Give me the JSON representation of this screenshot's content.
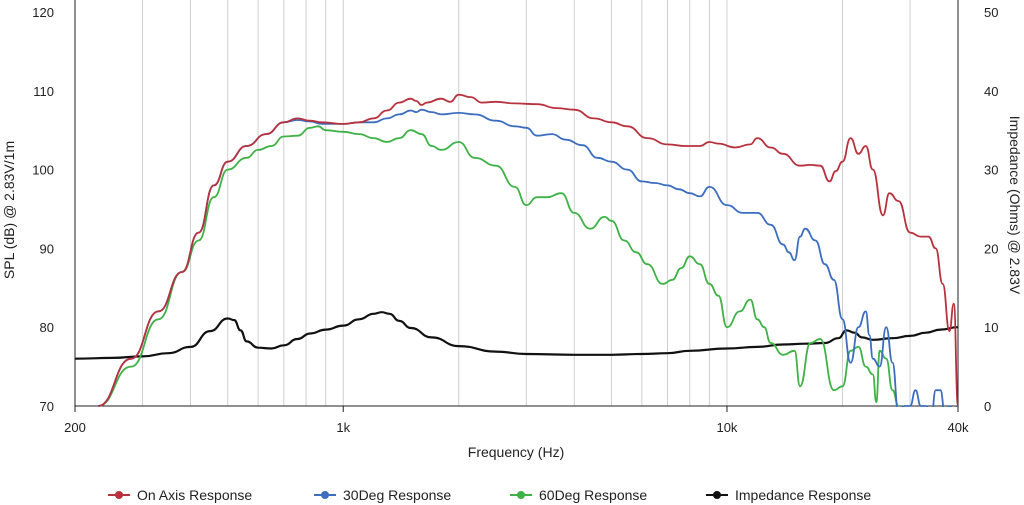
{
  "chart_data": {
    "type": "line",
    "title": "",
    "xlabel": "Frequency (Hz)",
    "ylabel": "SPL (dB) @ 2.83V/1m",
    "y2label": "Impedance (Ohms) @ 2.83V",
    "x_scale": "log",
    "xlim": [
      200,
      40000
    ],
    "ylim": [
      70,
      120
    ],
    "y2lim": [
      0,
      50
    ],
    "grid": "vertical",
    "legend_position": "bottom",
    "x_ticks": [
      {
        "value": 200,
        "label": "200"
      },
      {
        "value": 1000,
        "label": "1k"
      },
      {
        "value": 10000,
        "label": "10k"
      },
      {
        "value": 40000,
        "label": "40k"
      }
    ],
    "y_ticks": [
      {
        "value": 70,
        "label": "70"
      },
      {
        "value": 80,
        "label": "80"
      },
      {
        "value": 90,
        "label": "90"
      },
      {
        "value": 100,
        "label": "100"
      },
      {
        "value": 110,
        "label": "110"
      },
      {
        "value": 120,
        "label": "120"
      }
    ],
    "y2_ticks": [
      {
        "value": 0,
        "label": "0"
      },
      {
        "value": 10,
        "label": "10"
      },
      {
        "value": 20,
        "label": "20"
      },
      {
        "value": 30,
        "label": "30"
      },
      {
        "value": 40,
        "label": "40"
      },
      {
        "value": 50,
        "label": "50"
      }
    ],
    "series": [
      {
        "name": "On Axis Response",
        "color": "#b8323e",
        "axis": "left",
        "x": [
          230,
          280,
          330,
          380,
          420,
          460,
          500,
          560,
          630,
          700,
          760,
          820,
          880,
          1000,
          1100,
          1200,
          1300,
          1400,
          1500,
          1550,
          1600,
          1650,
          1800,
          1900,
          2000,
          2150,
          2300,
          2500,
          2800,
          3200,
          3600,
          4000,
          4500,
          5000,
          5500,
          6200,
          7000,
          7800,
          8500,
          9000,
          9500,
          10500,
          11500,
          12000,
          13000,
          14000,
          15500,
          16500,
          17500,
          18500,
          19200,
          20000,
          21000,
          22000,
          23000,
          24000,
          25500,
          26500,
          28000,
          30000,
          32000,
          33500,
          35000,
          36500,
          38000,
          39000,
          40000
        ],
        "y": [
          70,
          76,
          82,
          87,
          92,
          98,
          101,
          103,
          104.5,
          106,
          106.5,
          106.2,
          106,
          105.8,
          106,
          106.5,
          107.5,
          108.5,
          109,
          108.7,
          108.2,
          108.5,
          109,
          108.6,
          109.5,
          109.2,
          108.5,
          108.6,
          108.4,
          108.3,
          107.8,
          107.6,
          106.5,
          106,
          105.5,
          104,
          103.2,
          103,
          103,
          103.5,
          103.3,
          102.8,
          103.2,
          104,
          102.8,
          102,
          100.5,
          100.6,
          100.5,
          98.5,
          99.8,
          101,
          104,
          102,
          103,
          100,
          94.2,
          97,
          96,
          92,
          91.5,
          91.5,
          90,
          85.5,
          79.5,
          83,
          70
        ]
      },
      {
        "name": "30Deg Response",
        "color": "#3c6dbf",
        "axis": "left",
        "x": [
          230,
          280,
          330,
          380,
          420,
          460,
          500,
          560,
          630,
          700,
          760,
          820,
          880,
          1000,
          1100,
          1200,
          1300,
          1400,
          1500,
          1550,
          1600,
          1700,
          1800,
          2000,
          2200,
          2500,
          2800,
          3000,
          3200,
          3500,
          3800,
          4200,
          4600,
          5000,
          5500,
          6000,
          6500,
          7000,
          7500,
          8000,
          8500,
          9000,
          10000,
          11000,
          12000,
          13000,
          14000,
          14500,
          15000,
          15500,
          16000,
          17000,
          18000,
          19000,
          20000,
          21000,
          22000,
          23000,
          23500,
          24000,
          25000,
          26000,
          27000,
          28000,
          29000,
          30000,
          31000,
          32000,
          33000,
          34000,
          35000,
          36000,
          37000,
          38000,
          39000,
          40000
        ],
        "y": [
          70,
          76,
          82,
          87,
          92,
          98,
          101,
          103,
          104.5,
          106,
          106.3,
          106.1,
          105.8,
          105.8,
          106,
          106,
          106.5,
          107,
          107.5,
          107.3,
          107.6,
          107.3,
          107,
          107.2,
          107,
          106.2,
          105.5,
          105.3,
          104.3,
          104.5,
          103.8,
          103.1,
          101.5,
          101,
          100,
          98.5,
          98.3,
          98,
          97.5,
          97,
          96.6,
          97.8,
          95.5,
          94.5,
          94.5,
          93,
          90.5,
          89.5,
          88.5,
          91.5,
          92.5,
          91,
          88,
          86,
          81,
          75.5,
          80,
          82,
          79,
          76,
          75,
          80,
          75.5,
          69,
          70,
          70,
          72,
          70,
          70,
          68,
          72,
          72,
          69,
          70,
          69,
          70
        ]
      },
      {
        "name": "60Deg Response",
        "color": "#3fb247",
        "axis": "left",
        "x": [
          230,
          280,
          330,
          380,
          420,
          460,
          500,
          560,
          600,
          650,
          700,
          760,
          820,
          860,
          900,
          1000,
          1100,
          1200,
          1300,
          1400,
          1500,
          1600,
          1700,
          1800,
          2000,
          2200,
          2500,
          2800,
          3000,
          3200,
          3400,
          3700,
          4000,
          4400,
          4800,
          5000,
          5400,
          5800,
          6200,
          6800,
          7200,
          7600,
          8000,
          8500,
          9000,
          9500,
          10000,
          10800,
          11500,
          12000,
          12500,
          13000,
          14000,
          15000,
          15500,
          16500,
          17500,
          19000,
          20000,
          21000,
          22000,
          23000,
          24000,
          24500,
          25000,
          26000,
          27000,
          28000
        ],
        "y": [
          70,
          75,
          81,
          87,
          91,
          96.5,
          100,
          101.5,
          102.5,
          103,
          104.2,
          104.3,
          105.3,
          105.5,
          105,
          104.8,
          104.5,
          104,
          103.5,
          104,
          105,
          104.5,
          103,
          102.5,
          103.5,
          101.5,
          100.5,
          97.8,
          95.5,
          96.5,
          96.5,
          97,
          94.5,
          92.5,
          94,
          93.5,
          91,
          89.5,
          88,
          85.5,
          86,
          87.5,
          89,
          88,
          85.5,
          84,
          80,
          82,
          83.5,
          81,
          80,
          78,
          76.5,
          77,
          72.5,
          78,
          78.5,
          72,
          72.5,
          77,
          77.5,
          75,
          74,
          70.5,
          77,
          76,
          72,
          70
        ]
      },
      {
        "name": "Impedance Response",
        "color": "#111111",
        "axis": "right",
        "x": [
          200,
          250,
          300,
          350,
          400,
          450,
          500,
          520,
          540,
          560,
          600,
          650,
          700,
          760,
          820,
          900,
          1000,
          1100,
          1200,
          1260,
          1320,
          1400,
          1500,
          1700,
          2000,
          2500,
          3000,
          4000,
          5000,
          6000,
          7000,
          8000,
          10000,
          12000,
          14000,
          16000,
          18000,
          19500,
          20500,
          21500,
          22500,
          24000,
          27000,
          30000,
          33000,
          36000,
          40000
        ],
        "y": [
          6,
          6.1,
          6.3,
          6.7,
          7.5,
          9.5,
          11.1,
          10.9,
          9.6,
          8.2,
          7.4,
          7.3,
          7.7,
          8.5,
          9.2,
          9.7,
          10.2,
          11,
          11.7,
          11.9,
          11.7,
          10.8,
          9.9,
          8.7,
          7.6,
          6.9,
          6.6,
          6.5,
          6.5,
          6.6,
          6.7,
          7,
          7.3,
          7.5,
          7.8,
          7.9,
          8,
          8.6,
          9.6,
          9.3,
          8.7,
          8.4,
          8.6,
          8.9,
          9.3,
          9.7,
          10
        ]
      }
    ]
  }
}
